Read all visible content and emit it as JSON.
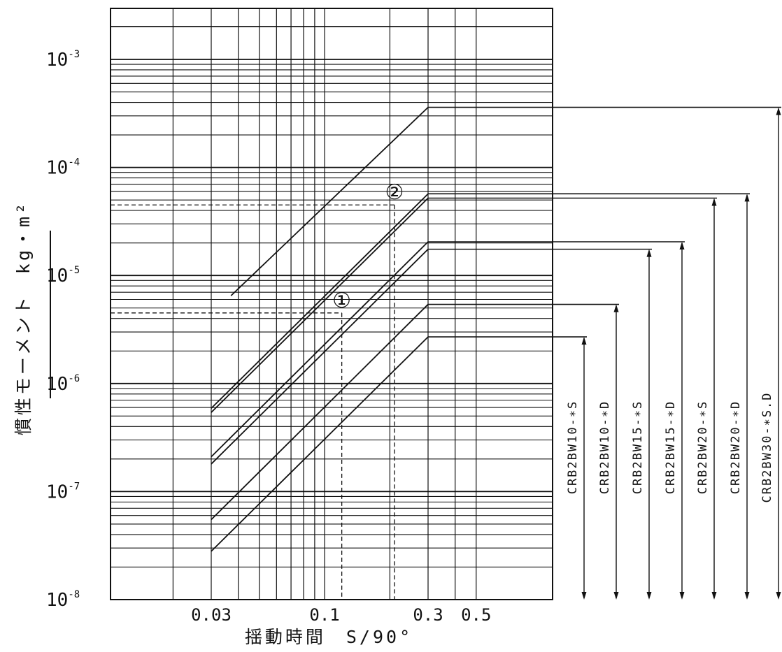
{
  "chart_data": {
    "type": "line",
    "xscale": "log",
    "yscale": "log",
    "xlim": [
      0.01,
      1.0
    ],
    "ylim": [
      1e-08,
      0.003
    ],
    "xticks": [
      0.03,
      0.1,
      0.3,
      0.5
    ],
    "xtick_labels": [
      "0.03",
      "0.1",
      "0.3",
      "0.5"
    ],
    "yticks": [
      {
        "value": 1e-08,
        "base": "10",
        "exp": "-8"
      },
      {
        "value": 1e-07,
        "base": "10",
        "exp": "-7"
      },
      {
        "value": 1e-06,
        "base": "10",
        "exp": "-6"
      },
      {
        "value": 1e-05,
        "base": "10",
        "exp": "-5"
      },
      {
        "value": 0.0001,
        "base": "10",
        "exp": "-4"
      },
      {
        "value": 0.001,
        "base": "10",
        "exp": "-3"
      }
    ],
    "xlabel": "揺動時間　S/90°",
    "ylabel": "慣性モーメント　kg・m²",
    "grid": true,
    "series": [
      {
        "name": "CRB2BW10-∗S",
        "x": [
          0.03,
          0.3
        ],
        "y": [
          2.8e-08,
          2.7e-06
        ],
        "plateau": 2.7e-06
      },
      {
        "name": "CRB2BW10-∗D",
        "x": [
          0.03,
          0.3
        ],
        "y": [
          5.5e-08,
          5.4e-06
        ],
        "plateau": 5.4e-06
      },
      {
        "name": "CRB2BW15-∗S",
        "x": [
          0.03,
          0.3
        ],
        "y": [
          1.8e-07,
          1.75e-05
        ],
        "plateau": 1.75e-05
      },
      {
        "name": "CRB2BW15-∗D",
        "x": [
          0.03,
          0.3
        ],
        "y": [
          2.1e-07,
          2.05e-05
        ],
        "plateau": 2.05e-05
      },
      {
        "name": "CRB2BW20-∗S",
        "x": [
          0.03,
          0.3
        ],
        "y": [
          5.4e-07,
          5.2e-05
        ],
        "plateau": 5.2e-05
      },
      {
        "name": "CRB2BW20-∗D",
        "x": [
          0.03,
          0.3
        ],
        "y": [
          5.9e-07,
          5.7e-05
        ],
        "plateau": 5.7e-05
      },
      {
        "name": "CRB2BW30-∗S.D",
        "x": [
          0.037,
          0.3
        ],
        "y": [
          6.5e-06,
          0.00036
        ],
        "plateau": 0.00036
      }
    ],
    "annotations": [
      {
        "label": "①",
        "x": 0.12,
        "y": 4.5e-06
      },
      {
        "label": "②",
        "x": 0.21,
        "y": 4.5e-05
      }
    ]
  }
}
